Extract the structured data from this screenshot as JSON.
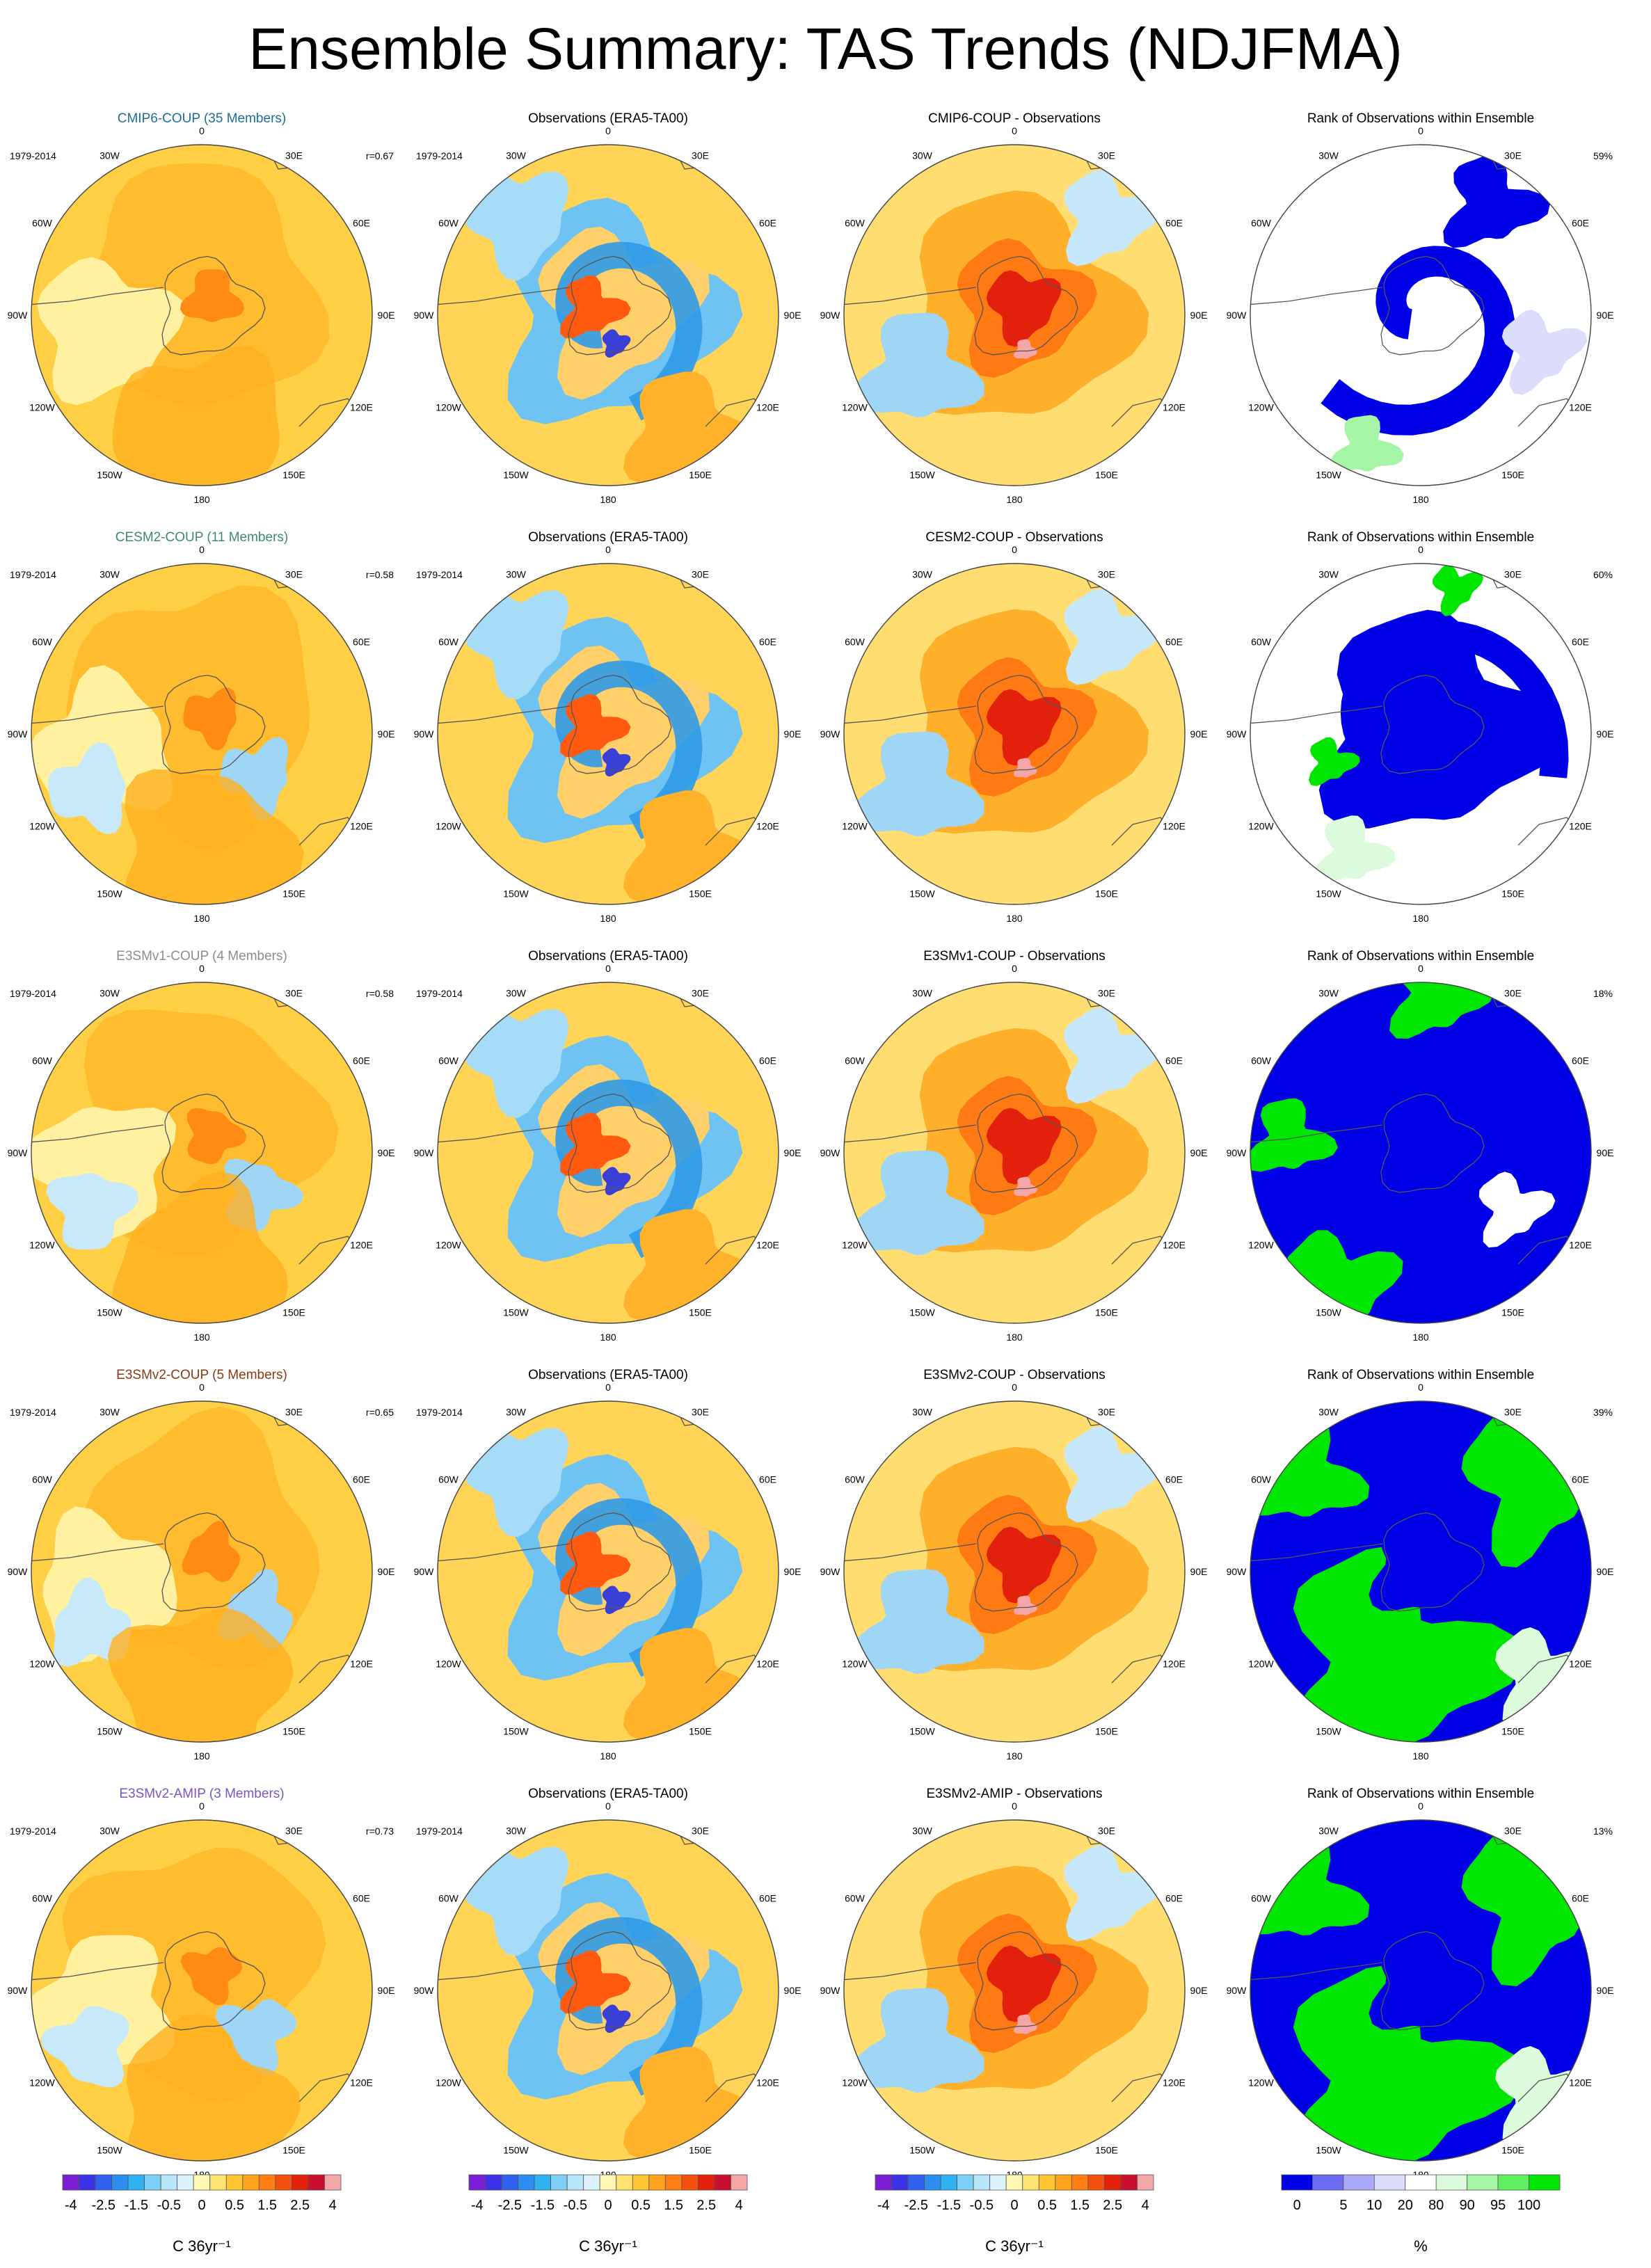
{
  "title": "Ensemble Summary: TAS Trends (NDJFMA)",
  "period": "1979-2014",
  "lon_labels": [
    "0",
    "30E",
    "60E",
    "90E",
    "120E",
    "150E",
    "180",
    "150W",
    "120W",
    "90W",
    "60W",
    "30W"
  ],
  "rows": [
    {
      "model": "CMIP6-COUP (35 Members)",
      "model_color": "#1d6e96",
      "r": "r=0.67",
      "obs_title": "Observations (ERA5-TA00)",
      "diff_title": "CMIP6-COUP - Observations",
      "rank_title": "Rank of Observations within Ensemble",
      "rank_pct": "59%",
      "rank_scheme": "white"
    },
    {
      "model": "CESM2-COUP (11 Members)",
      "model_color": "#3f8a6a",
      "r": "r=0.58",
      "obs_title": "Observations (ERA5-TA00)",
      "diff_title": "CESM2-COUP - Observations",
      "rank_title": "Rank of Observations within Ensemble",
      "rank_pct": "60%",
      "rank_scheme": "mixed"
    },
    {
      "model": "E3SMv1-COUP (4 Members)",
      "model_color": "#8c8c8c",
      "r": "r=0.58",
      "obs_title": "Observations (ERA5-TA00)",
      "diff_title": "E3SMv1-COUP - Observations",
      "rank_title": "Rank of Observations within Ensemble",
      "rank_pct": "18%",
      "rank_scheme": "blue"
    },
    {
      "model": "E3SMv2-COUP (5 Members)",
      "model_color": "#8a3a12",
      "r": "r=0.65",
      "obs_title": "Observations (ERA5-TA00)",
      "diff_title": "E3SMv2-COUP - Observations",
      "rank_title": "Rank of Observations within Ensemble",
      "rank_pct": "39%",
      "rank_scheme": "green"
    },
    {
      "model": "E3SMv2-AMIP (3 Members)",
      "model_color": "#7a55c4",
      "r": "r=0.73",
      "obs_title": "Observations (ERA5-TA00)",
      "diff_title": "E3SMv2-AMIP - Observations",
      "rank_title": "Rank of Observations within Ensemble",
      "rank_pct": "13%",
      "rank_scheme": "green"
    }
  ],
  "trend_colorbar": {
    "labels": [
      "-4",
      "-2.5",
      "-1.5",
      "-0.5",
      "0",
      "0.5",
      "1.5",
      "2.5",
      "4"
    ],
    "units": "C 36yr⁻¹",
    "colors": [
      "#7a1fd6",
      "#3b32e8",
      "#2f62f0",
      "#2c8ef3",
      "#2fb2f2",
      "#7dcff5",
      "#b7e5fa",
      "#dbf1fb",
      "#fff7b3",
      "#ffe371",
      "#ffc533",
      "#ffa31f",
      "#ff7d12",
      "#f54f0d",
      "#e3200c",
      "#c8102e",
      "#f5a7a7"
    ]
  },
  "rank_colorbar": {
    "labels": [
      "0",
      "5",
      "10",
      "20",
      "80",
      "90",
      "95",
      "100"
    ],
    "units": "%",
    "colors": [
      "#0000e6",
      "#6b6bf2",
      "#a9a9f7",
      "#dcdcfb",
      "#ffffff",
      "#dcfadc",
      "#a6f5a6",
      "#5fef5f",
      "#00e600"
    ]
  }
}
